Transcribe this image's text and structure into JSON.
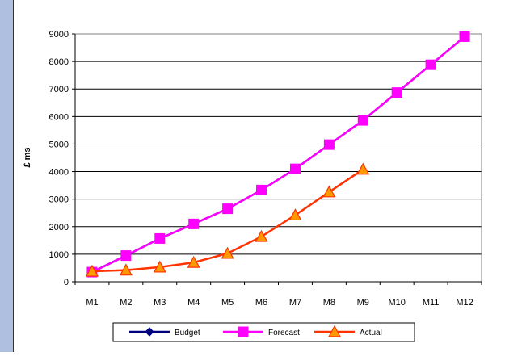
{
  "chart_data": {
    "type": "line",
    "title": "",
    "xlabel": "",
    "ylabel": "£ ms",
    "categories": [
      "M1",
      "M2",
      "M3",
      "M4",
      "M5",
      "M6",
      "M7",
      "M8",
      "M9",
      "M10",
      "M11",
      "M12"
    ],
    "ylim": [
      0,
      9000
    ],
    "yticks": [
      0,
      1000,
      2000,
      3000,
      4000,
      5000,
      6000,
      7000,
      8000,
      9000
    ],
    "grid": true,
    "legend_position": "bottom",
    "series": [
      {
        "name": "Budget",
        "color": "#000080",
        "marker": "diamond",
        "values": [
          350,
          950,
          1570,
          2100,
          2650,
          3330,
          4100,
          4980,
          5860,
          6870,
          7880,
          8900
        ]
      },
      {
        "name": "Forecast",
        "color": "#ff00ff",
        "marker": "square",
        "values": [
          350,
          950,
          1570,
          2100,
          2650,
          3330,
          4100,
          4980,
          5860,
          6870,
          7880,
          8900
        ]
      },
      {
        "name": "Actual",
        "color": "#ff3300",
        "marker": "triangle",
        "marker_fill": "#ff9900",
        "values": [
          380,
          420,
          530,
          700,
          1030,
          1640,
          2420,
          3260,
          4080,
          null,
          null,
          null
        ]
      }
    ]
  }
}
